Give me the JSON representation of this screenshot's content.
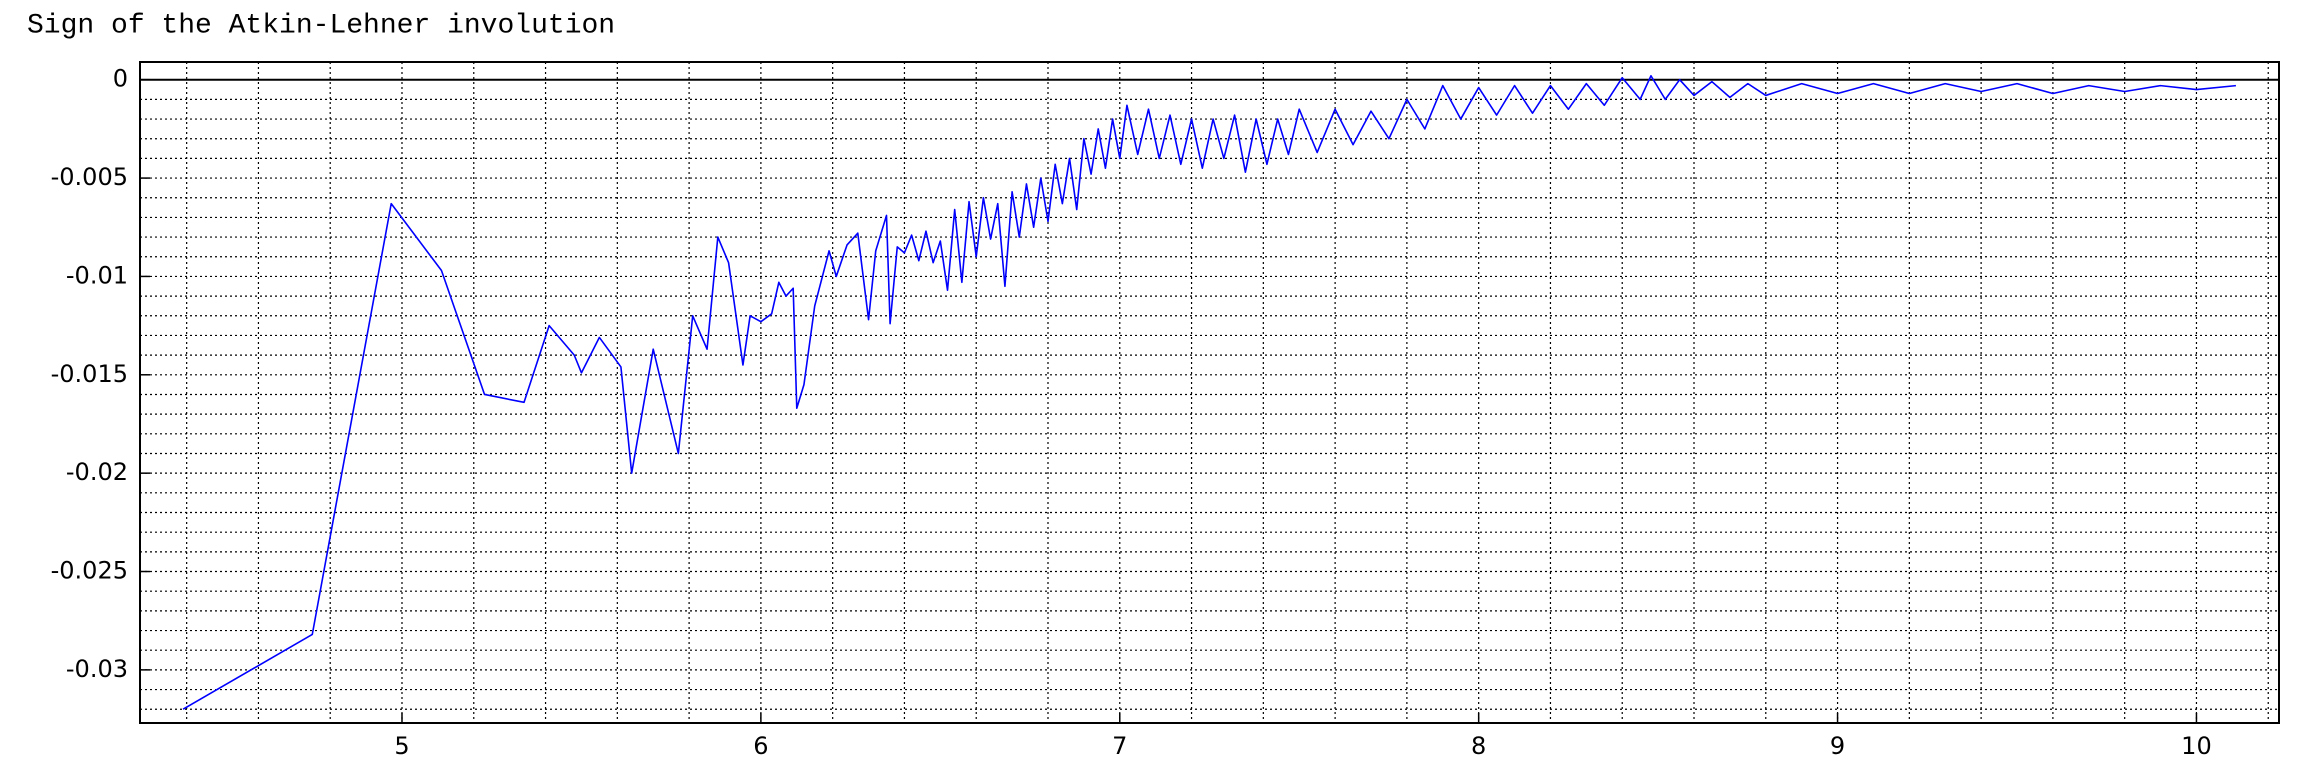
{
  "chart_data": {
    "type": "line",
    "title": "Sign of the Atkin-Lehner involution",
    "x": [
      4.39,
      4.75,
      4.97,
      5.11,
      5.23,
      5.34,
      5.41,
      5.48,
      5.5,
      5.55,
      5.61,
      5.64,
      5.7,
      5.77,
      5.81,
      5.85,
      5.88,
      5.91,
      5.95,
      5.97,
      6.0,
      6.03,
      6.05,
      6.07,
      6.09,
      6.1,
      6.12,
      6.15,
      6.19,
      6.21,
      6.24,
      6.27,
      6.3,
      6.32,
      6.35,
      6.36,
      6.38,
      6.4,
      6.42,
      6.44,
      6.46,
      6.48,
      6.5,
      6.52,
      6.54,
      6.56,
      6.58,
      6.6,
      6.62,
      6.64,
      6.66,
      6.68,
      6.7,
      6.72,
      6.74,
      6.76,
      6.78,
      6.8,
      6.82,
      6.84,
      6.86,
      6.88,
      6.9,
      6.92,
      6.94,
      6.96,
      6.98,
      7.0,
      7.02,
      7.05,
      7.08,
      7.11,
      7.14,
      7.17,
      7.2,
      7.23,
      7.26,
      7.29,
      7.32,
      7.35,
      7.38,
      7.41,
      7.44,
      7.47,
      7.5,
      7.55,
      7.6,
      7.65,
      7.7,
      7.75,
      7.8,
      7.85,
      7.9,
      7.95,
      8.0,
      8.05,
      8.1,
      8.15,
      8.2,
      8.25,
      8.3,
      8.35,
      8.4,
      8.45,
      8.48,
      8.52,
      8.56,
      8.6,
      8.65,
      8.7,
      8.75,
      8.8,
      8.9,
      9.0,
      9.1,
      9.2,
      9.3,
      9.4,
      9.5,
      9.6,
      9.7,
      9.8,
      9.9,
      10.0,
      10.11
    ],
    "series": [
      {
        "color": "#0000ff",
        "values": [
          -0.032,
          -0.0282,
          -0.0063,
          -0.0097,
          -0.016,
          -0.0164,
          -0.0125,
          -0.014,
          -0.0149,
          -0.0131,
          -0.0146,
          -0.02,
          -0.0137,
          -0.019,
          -0.012,
          -0.0137,
          -0.008,
          -0.0093,
          -0.0145,
          -0.012,
          -0.0123,
          -0.0119,
          -0.0103,
          -0.011,
          -0.0106,
          -0.0167,
          -0.0155,
          -0.0115,
          -0.0087,
          -0.01,
          -0.0084,
          -0.0078,
          -0.0122,
          -0.0087,
          -0.0069,
          -0.0124,
          -0.0085,
          -0.0088,
          -0.0079,
          -0.0092,
          -0.0077,
          -0.0093,
          -0.0082,
          -0.0107,
          -0.0066,
          -0.0103,
          -0.0062,
          -0.009,
          -0.006,
          -0.0081,
          -0.0063,
          -0.0105,
          -0.0057,
          -0.008,
          -0.0053,
          -0.0075,
          -0.005,
          -0.0072,
          -0.0043,
          -0.0063,
          -0.004,
          -0.0066,
          -0.003,
          -0.0048,
          -0.0025,
          -0.0045,
          -0.002,
          -0.004,
          -0.0013,
          -0.0038,
          -0.0015,
          -0.004,
          -0.0018,
          -0.0043,
          -0.002,
          -0.0045,
          -0.002,
          -0.004,
          -0.0018,
          -0.0047,
          -0.002,
          -0.0043,
          -0.002,
          -0.0038,
          -0.0015,
          -0.0037,
          -0.0015,
          -0.0033,
          -0.0016,
          -0.003,
          -0.001,
          -0.0025,
          -0.0003,
          -0.002,
          -0.0004,
          -0.0018,
          -0.0003,
          -0.0017,
          -0.0003,
          -0.0015,
          -0.0002,
          -0.0013,
          0.0001,
          -0.001,
          0.0002,
          -0.001,
          0.0,
          -0.0008,
          -0.0001,
          -0.0009,
          -0.0002,
          -0.0008,
          -0.0002,
          -0.0007,
          -0.0002,
          -0.0007,
          -0.0002,
          -0.0006,
          -0.0002,
          -0.0007,
          -0.0003,
          -0.0006,
          -0.0003,
          -0.0005,
          -0.0003
        ]
      }
    ],
    "xlim": [
      4.27,
      10.23
    ],
    "ylim": [
      -0.0327,
      0.0009
    ],
    "xticks": [
      5,
      6,
      7,
      8,
      9,
      10
    ],
    "yticks": [
      0,
      -0.005,
      -0.01,
      -0.015,
      -0.02,
      -0.025,
      -0.03
    ],
    "xminorticks": [
      4.4,
      4.6,
      4.8,
      5.2,
      5.4,
      5.6,
      5.8,
      6.2,
      6.4,
      6.6,
      6.8,
      7.2,
      7.4,
      7.6,
      7.8,
      8.2,
      8.4,
      8.6,
      8.8,
      9.2,
      9.4,
      9.6,
      9.8,
      10.2
    ],
    "yminorticks": [
      -0.001,
      -0.002,
      -0.003,
      -0.004,
      -0.006,
      -0.007,
      -0.008,
      -0.009,
      -0.011,
      -0.012,
      -0.013,
      -0.014,
      -0.016,
      -0.017,
      -0.018,
      -0.019,
      -0.021,
      -0.022,
      -0.023,
      -0.024,
      -0.026,
      -0.027,
      -0.028,
      -0.029,
      -0.031,
      -0.032
    ],
    "grid": true
  }
}
